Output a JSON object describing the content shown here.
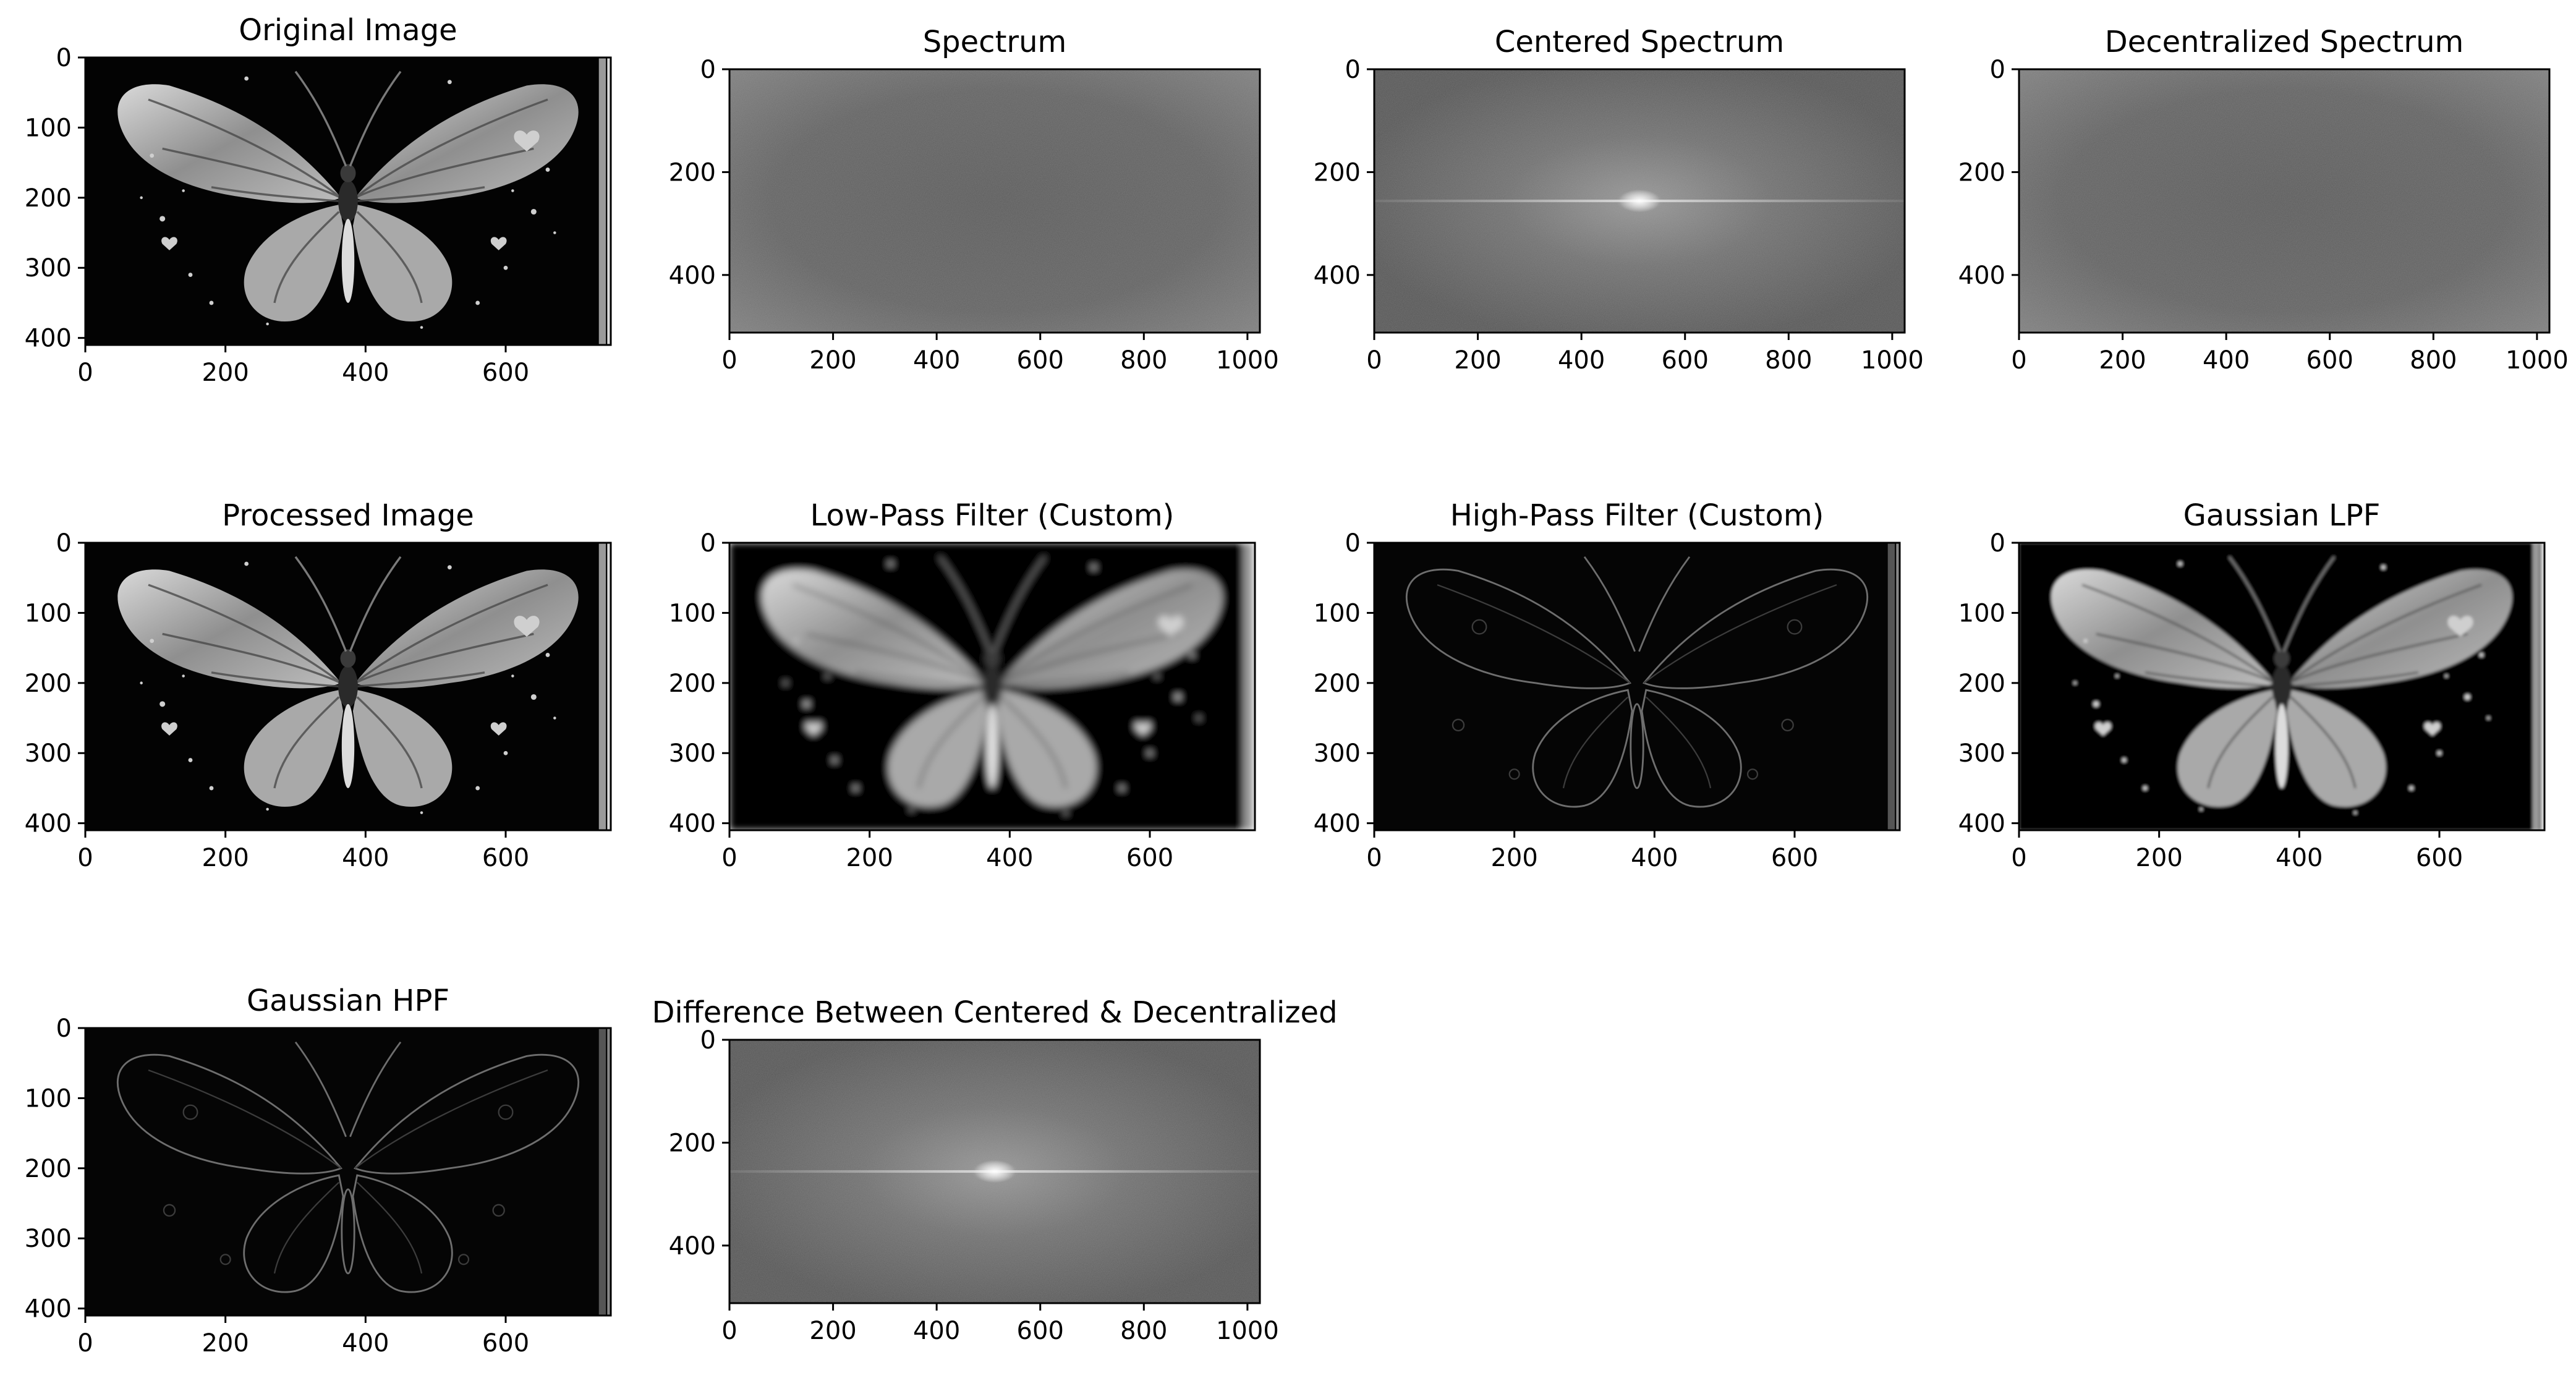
{
  "panels": [
    {
      "id": "original",
      "title": "Original Image",
      "kind": "photo",
      "xticks": [
        "0",
        "200",
        "400",
        "600"
      ],
      "yticks": [
        "0",
        "100",
        "200",
        "300",
        "400"
      ],
      "xmax": 750,
      "ymax": 410
    },
    {
      "id": "spectrum",
      "title": "Spectrum",
      "kind": "spectrum-corner",
      "xticks": [
        "0",
        "200",
        "400",
        "600",
        "800",
        "1000"
      ],
      "yticks": [
        "0",
        "200",
        "400"
      ],
      "xmax": 1024,
      "ymax": 512
    },
    {
      "id": "centered",
      "title": "Centered Spectrum",
      "kind": "spectrum-center",
      "xticks": [
        "0",
        "200",
        "400",
        "600",
        "800",
        "1000"
      ],
      "yticks": [
        "0",
        "200",
        "400"
      ],
      "xmax": 1024,
      "ymax": 512
    },
    {
      "id": "decentralized",
      "title": "Decentralized Spectrum",
      "kind": "spectrum-corner",
      "xticks": [
        "0",
        "200",
        "400",
        "600",
        "800",
        "1000"
      ],
      "yticks": [
        "0",
        "200",
        "400"
      ],
      "xmax": 1024,
      "ymax": 512
    },
    {
      "id": "processed",
      "title": "Processed Image",
      "kind": "photo",
      "xticks": [
        "0",
        "200",
        "400",
        "600"
      ],
      "yticks": [
        "0",
        "100",
        "200",
        "300",
        "400"
      ],
      "xmax": 750,
      "ymax": 410
    },
    {
      "id": "lpf-custom",
      "title": "Low-Pass Filter (Custom)",
      "kind": "photo-blur",
      "xticks": [
        "0",
        "200",
        "400",
        "600"
      ],
      "yticks": [
        "0",
        "100",
        "200",
        "300",
        "400"
      ],
      "xmax": 750,
      "ymax": 410
    },
    {
      "id": "hpf-custom",
      "title": "High-Pass Filter (Custom)",
      "kind": "photo-edge",
      "xticks": [
        "0",
        "200",
        "400",
        "600"
      ],
      "yticks": [
        "0",
        "100",
        "200",
        "300",
        "400"
      ],
      "xmax": 750,
      "ymax": 410
    },
    {
      "id": "gaussian-lpf",
      "title": "Gaussian LPF",
      "kind": "photo-soft",
      "xticks": [
        "0",
        "200",
        "400",
        "600"
      ],
      "yticks": [
        "0",
        "100",
        "200",
        "300",
        "400"
      ],
      "xmax": 750,
      "ymax": 410
    },
    {
      "id": "gaussian-hpf",
      "title": "Gaussian HPF",
      "kind": "photo-edge",
      "xticks": [
        "0",
        "200",
        "400",
        "600"
      ],
      "yticks": [
        "0",
        "100",
        "200",
        "300",
        "400"
      ],
      "xmax": 750,
      "ymax": 410
    },
    {
      "id": "difference",
      "title": "Difference Between Centered & Decentralized",
      "kind": "spectrum-center",
      "xticks": [
        "0",
        "200",
        "400",
        "600",
        "800",
        "1000"
      ],
      "yticks": [
        "0",
        "200",
        "400"
      ],
      "xmax": 1024,
      "ymax": 512
    }
  ]
}
